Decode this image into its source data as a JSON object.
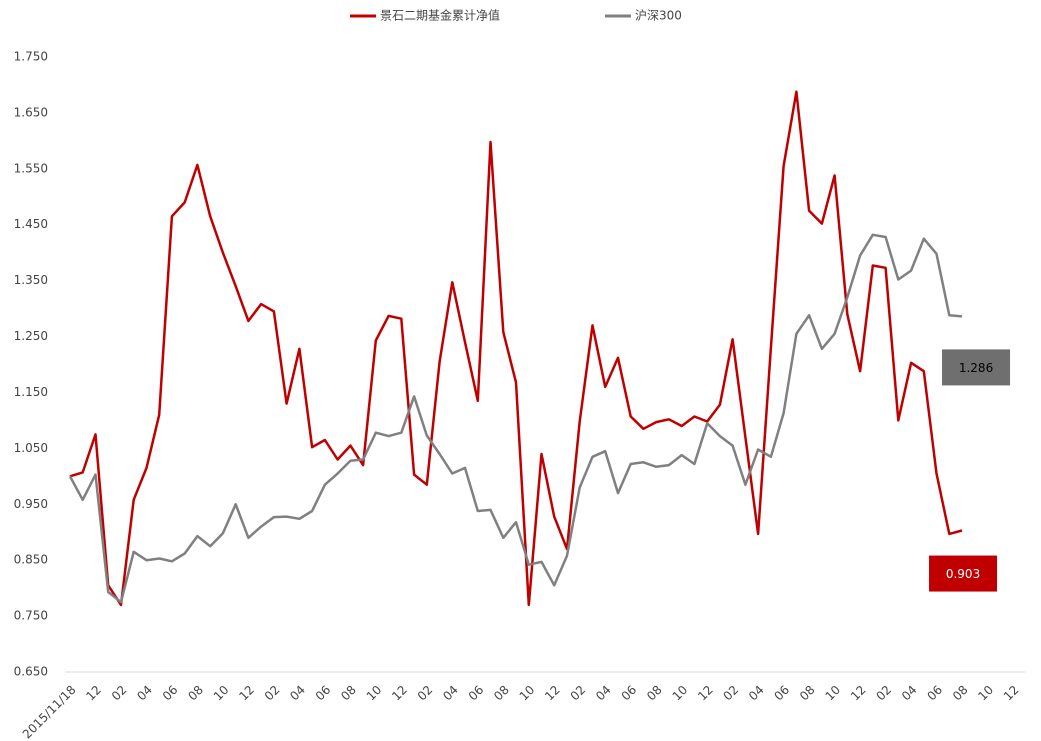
{
  "chart_data": {
    "type": "line",
    "categories": [
      "2015/11/18",
      null,
      "12",
      null,
      "02",
      null,
      "04",
      null,
      "06",
      null,
      "08",
      null,
      "10",
      null,
      "12",
      null,
      "02",
      null,
      "04",
      null,
      "06",
      null,
      "08",
      null,
      "10",
      null,
      "12",
      null,
      "02",
      null,
      "04",
      null,
      "06",
      null,
      "08",
      null,
      "10",
      null,
      "12",
      null,
      "02",
      null,
      "04",
      null,
      "06",
      null,
      "08",
      null,
      "10",
      null,
      "12",
      null,
      "02",
      null,
      "04",
      null,
      "06",
      null,
      "08",
      null,
      "10",
      null,
      "12",
      null,
      "02",
      null,
      "04",
      null,
      "06",
      null,
      "08",
      null,
      "10",
      null,
      "12"
    ],
    "series": [
      {
        "name": "景石二期基金累计净值",
        "color": "#c00000",
        "values": [
          1.0,
          1.007,
          1.075,
          0.805,
          0.77,
          0.958,
          1.015,
          1.11,
          1.465,
          1.49,
          1.557,
          1.465,
          1.4,
          1.34,
          1.278,
          1.308,
          1.295,
          1.13,
          1.228,
          1.052,
          1.065,
          1.03,
          1.055,
          1.02,
          1.243,
          1.287,
          1.282,
          1.003,
          0.985,
          1.205,
          1.347,
          1.24,
          1.135,
          1.598,
          1.258,
          1.168,
          0.77,
          1.04,
          0.928,
          0.87,
          1.098,
          1.27,
          1.16,
          1.212,
          1.107,
          1.085,
          1.097,
          1.102,
          1.09,
          1.107,
          1.098,
          1.128,
          1.245,
          1.07,
          0.897,
          1.23,
          1.555,
          1.688,
          1.475,
          1.452,
          1.538,
          1.29,
          1.188,
          1.377,
          1.373,
          1.1,
          1.203,
          1.188,
          1.005,
          0.897,
          0.903,
          null,
          null,
          null,
          null
        ]
      },
      {
        "name": "沪深300",
        "color": "#808080",
        "values": [
          1.0,
          0.958,
          1.003,
          0.793,
          0.775,
          0.865,
          0.85,
          0.853,
          0.848,
          0.862,
          0.893,
          0.875,
          0.898,
          0.95,
          0.89,
          0.91,
          0.927,
          0.928,
          0.924,
          0.938,
          0.985,
          1.005,
          1.028,
          1.03,
          1.078,
          1.072,
          1.078,
          1.143,
          1.073,
          1.04,
          1.005,
          1.015,
          0.938,
          0.94,
          0.89,
          0.918,
          0.842,
          0.847,
          0.805,
          0.858,
          0.98,
          1.035,
          1.045,
          0.97,
          1.022,
          1.025,
          1.017,
          1.02,
          1.038,
          1.022,
          1.095,
          1.072,
          1.055,
          0.985,
          1.048,
          1.035,
          1.113,
          1.255,
          1.288,
          1.228,
          1.255,
          1.32,
          1.395,
          1.432,
          1.428,
          1.352,
          1.368,
          1.425,
          1.398,
          1.288,
          1.286,
          null,
          null,
          null,
          null
        ]
      }
    ],
    "ylim": [
      0.65,
      1.75
    ],
    "yticks": [
      {
        "value": 0.65,
        "label": "0.650"
      },
      {
        "value": 0.75,
        "label": "0.750"
      },
      {
        "value": 0.85,
        "label": "0.850"
      },
      {
        "value": 0.95,
        "label": "0.950"
      },
      {
        "value": 1.05,
        "label": "1.050"
      },
      {
        "value": 1.15,
        "label": "1.150"
      },
      {
        "value": 1.25,
        "label": "1.250"
      },
      {
        "value": 1.35,
        "label": "1.350"
      },
      {
        "value": 1.45,
        "label": "1.450"
      },
      {
        "value": 1.55,
        "label": "1.550"
      },
      {
        "value": 1.65,
        "label": "1.650"
      },
      {
        "value": 1.75,
        "label": "1.750"
      }
    ],
    "legend": "top",
    "grid": false
  }
}
